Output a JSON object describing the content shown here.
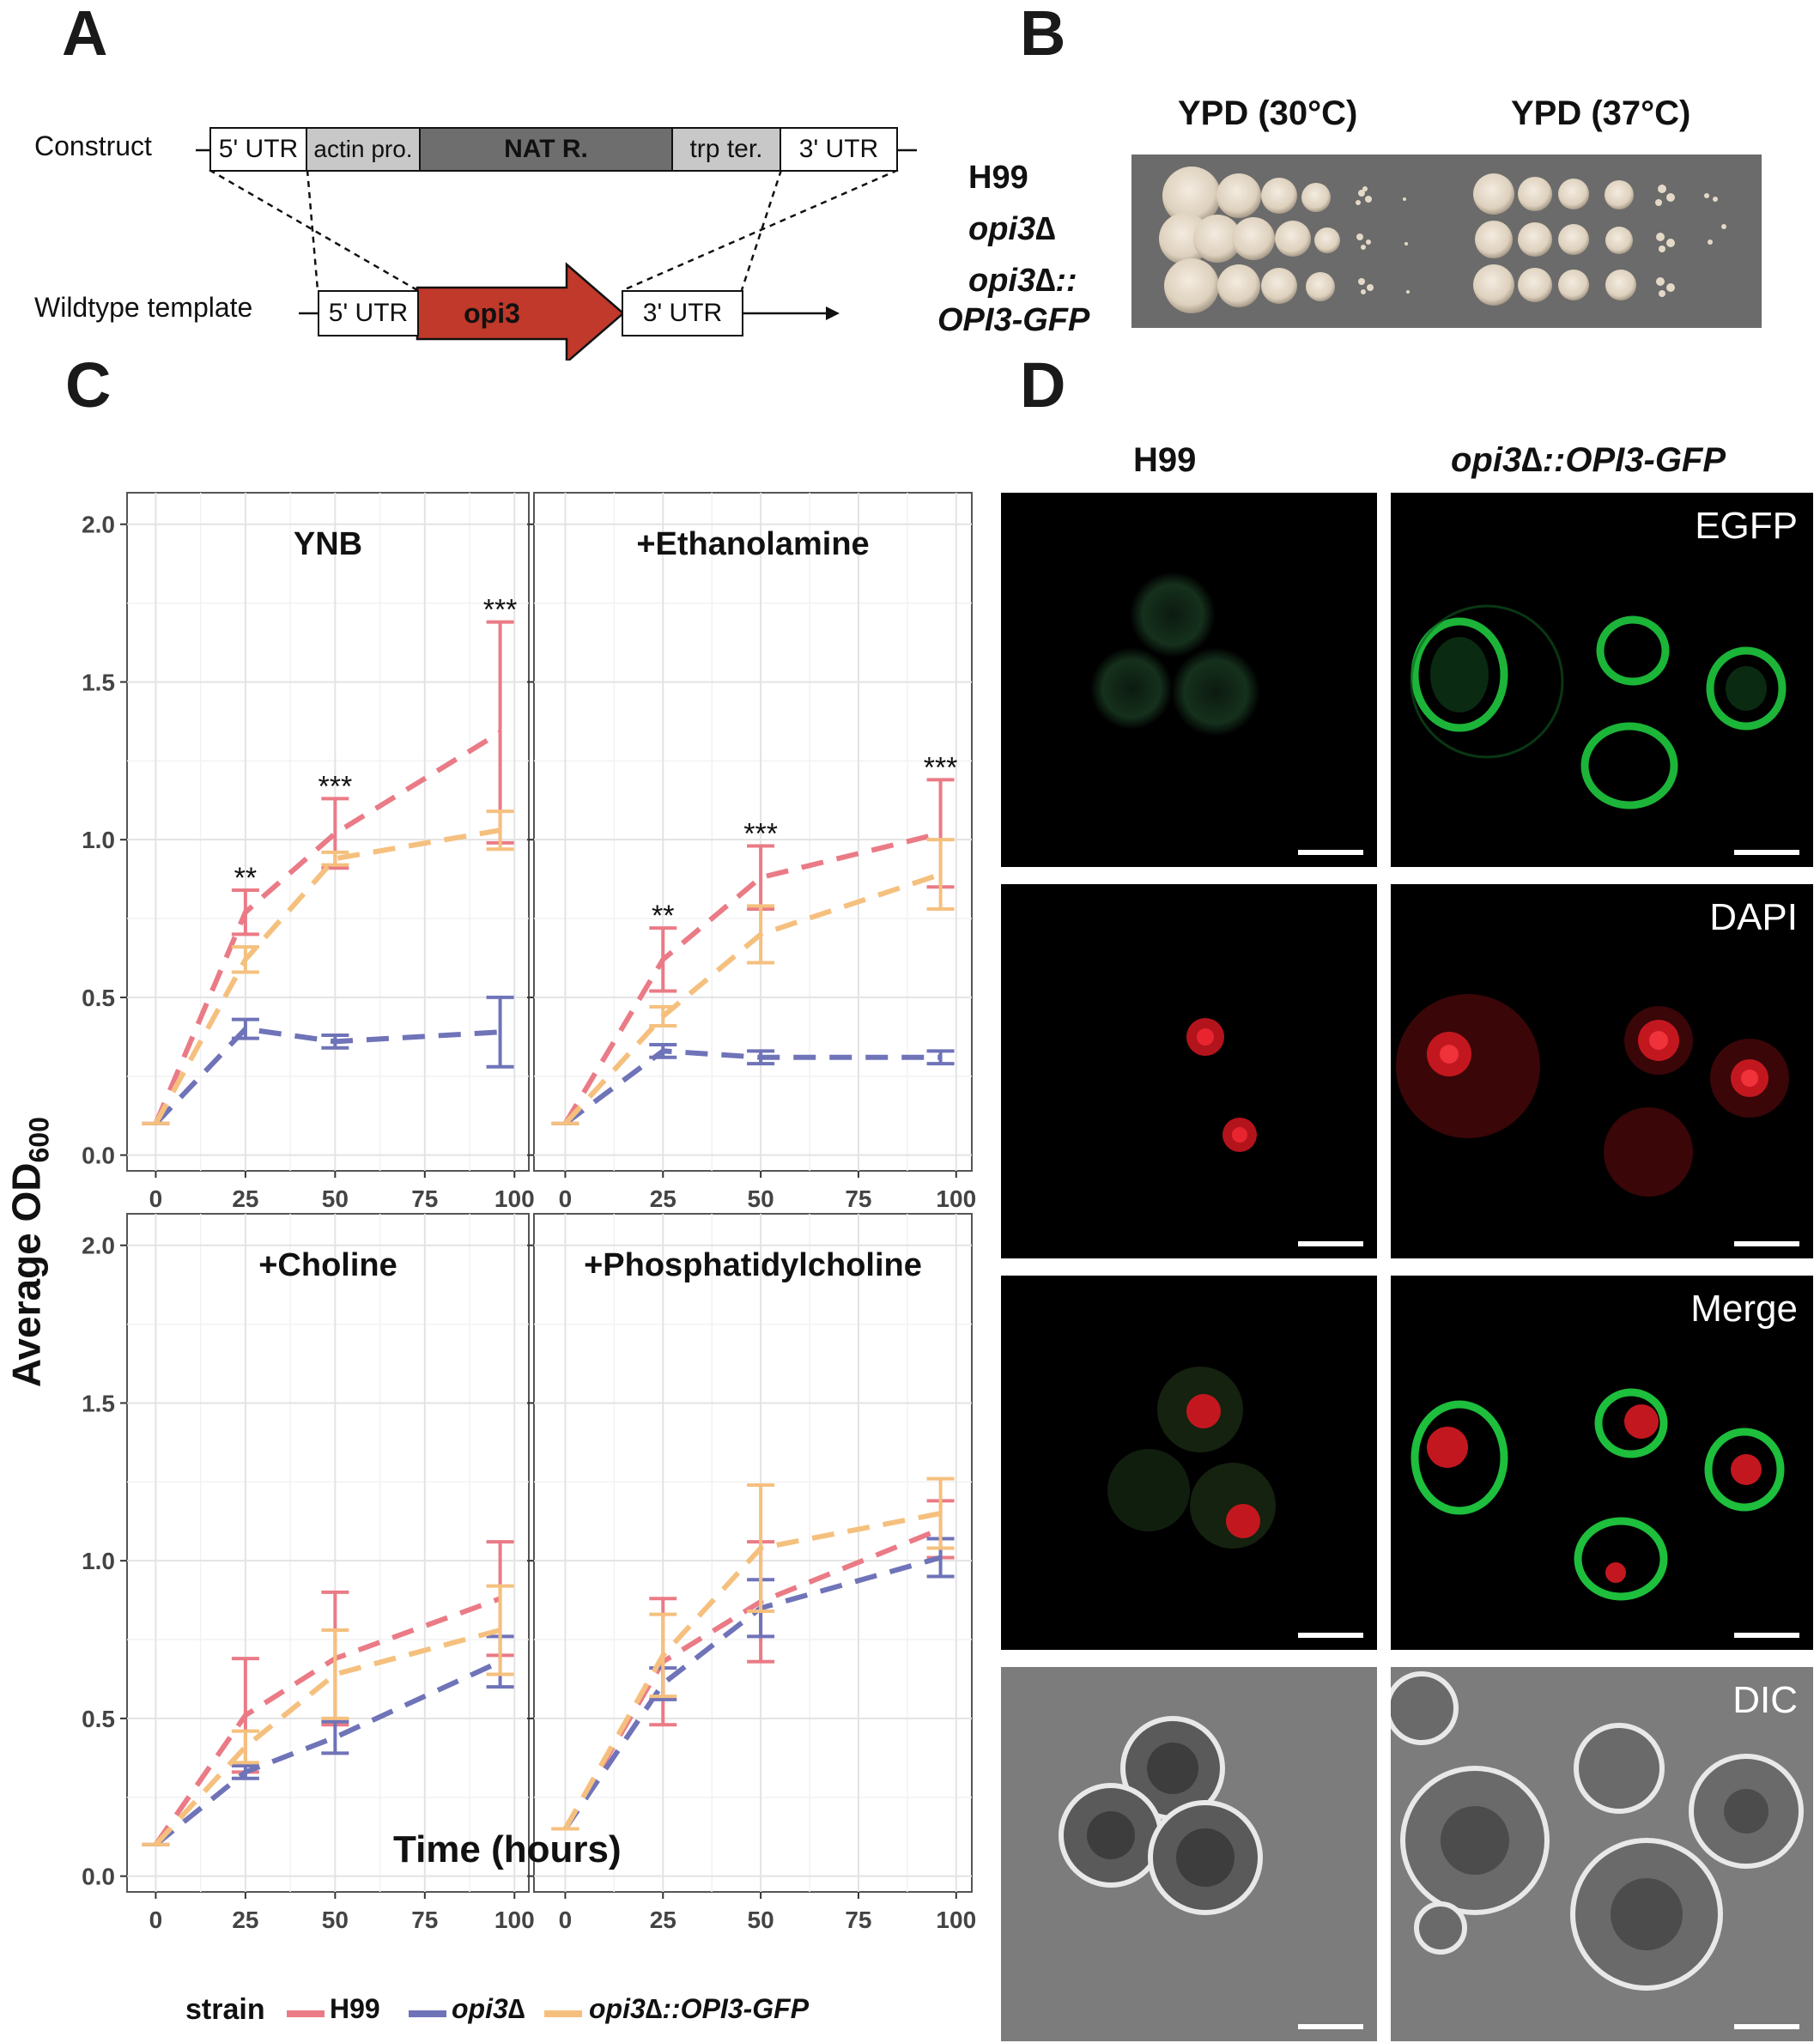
{
  "panels": {
    "A": "A",
    "B": "B",
    "C": "C",
    "D": "D"
  },
  "construct": {
    "row1_label": "Construct",
    "row2_label": "Wildtype template",
    "construct_boxes": [
      "5' UTR",
      "actin pro.",
      "NAT R.",
      "trp ter.",
      "3' UTR"
    ],
    "template_boxes": [
      "5' UTR",
      "opi3",
      "3' UTR"
    ],
    "colors": {
      "actin": "#c8c8c8",
      "natr": "#6e6e6e",
      "trp": "#c8c8c8",
      "opi3": "#c0392b"
    }
  },
  "spot_assay": {
    "col_headers": [
      "YPD (30°C)",
      "YPD (37°C)"
    ],
    "row_labels": [
      {
        "main": "H99",
        "sub": ""
      },
      {
        "main": "opi3∆",
        "sub": ""
      },
      {
        "main": "opi3∆::",
        "sub": "OPI3-GFP"
      }
    ]
  },
  "growth": {
    "ylabel": "Average OD",
    "ylabel_sub": "600",
    "xlabel": "Time (hours)",
    "legend_title": "strain",
    "legend": [
      "H99",
      "opi3∆",
      "opi3∆::OPI3-GFP"
    ],
    "colors": {
      "H99": "#ea7b86",
      "opi3": "#6f73b8",
      "gfp": "#f5c07e"
    }
  },
  "chart_data": [
    {
      "type": "line",
      "title": "YNB",
      "x": [
        0,
        25,
        50,
        96
      ],
      "xlim": [
        -8,
        104
      ],
      "ylim": [
        -0.05,
        2.1
      ],
      "xticks": [
        0,
        25,
        50,
        75,
        100
      ],
      "yticks": [
        0.0,
        0.5,
        1.0,
        1.5,
        2.0
      ],
      "series": [
        {
          "name": "H99",
          "values": [
            0.1,
            0.77,
            1.02,
            1.34
          ],
          "err": [
            0,
            0.07,
            0.11,
            0.35
          ]
        },
        {
          "name": "opi3∆",
          "values": [
            0.1,
            0.4,
            0.36,
            0.39
          ],
          "err": [
            0,
            0.03,
            0.02,
            0.11
          ]
        },
        {
          "name": "opi3∆::OPI3-GFP",
          "values": [
            0.1,
            0.62,
            0.94,
            1.03
          ],
          "err": [
            0,
            0.04,
            0.02,
            0.06
          ]
        }
      ],
      "annotations": [
        {
          "x": 25,
          "y": 0.87,
          "text": "**"
        },
        {
          "x": 50,
          "y": 1.16,
          "text": "***"
        },
        {
          "x": 96,
          "y": 1.72,
          "text": "***"
        }
      ]
    },
    {
      "type": "line",
      "title": "+Ethanolamine",
      "x": [
        0,
        25,
        50,
        96
      ],
      "xlim": [
        -8,
        104
      ],
      "ylim": [
        -0.05,
        2.1
      ],
      "xticks": [
        0,
        25,
        50,
        75,
        100
      ],
      "yticks": [
        0.0,
        0.5,
        1.0,
        1.5,
        2.0
      ],
      "series": [
        {
          "name": "H99",
          "values": [
            0.1,
            0.62,
            0.88,
            1.02
          ],
          "err": [
            0,
            0.1,
            0.1,
            0.17
          ]
        },
        {
          "name": "opi3∆",
          "values": [
            0.1,
            0.33,
            0.31,
            0.31
          ],
          "err": [
            0,
            0.02,
            0.02,
            0.02
          ]
        },
        {
          "name": "opi3∆::OPI3-GFP",
          "values": [
            0.1,
            0.44,
            0.7,
            0.89
          ],
          "err": [
            0,
            0.03,
            0.09,
            0.11
          ]
        }
      ],
      "annotations": [
        {
          "x": 25,
          "y": 0.75,
          "text": "**"
        },
        {
          "x": 50,
          "y": 1.01,
          "text": "***"
        },
        {
          "x": 96,
          "y": 1.22,
          "text": "***"
        }
      ]
    },
    {
      "type": "line",
      "title": "+Choline",
      "x": [
        0,
        25,
        50,
        96
      ],
      "xlim": [
        -8,
        104
      ],
      "ylim": [
        -0.05,
        2.1
      ],
      "xticks": [
        0,
        25,
        50,
        75,
        100
      ],
      "yticks": [
        0.0,
        0.5,
        1.0,
        1.5,
        2.0
      ],
      "series": [
        {
          "name": "H99",
          "values": [
            0.1,
            0.51,
            0.69,
            0.88
          ],
          "err": [
            0,
            0.18,
            0.21,
            0.18
          ]
        },
        {
          "name": "opi3∆",
          "values": [
            0.1,
            0.33,
            0.44,
            0.68
          ],
          "err": [
            0,
            0.02,
            0.05,
            0.08
          ]
        },
        {
          "name": "opi3∆::OPI3-GFP",
          "values": [
            0.1,
            0.41,
            0.64,
            0.78
          ],
          "err": [
            0,
            0.05,
            0.14,
            0.14
          ]
        }
      ],
      "annotations": []
    },
    {
      "type": "line",
      "title": "+Phosphatidylcholine",
      "x": [
        0,
        25,
        50,
        96
      ],
      "xlim": [
        -8,
        104
      ],
      "ylim": [
        -0.05,
        2.1
      ],
      "xticks": [
        0,
        25,
        50,
        75,
        100
      ],
      "yticks": [
        0.0,
        0.5,
        1.0,
        1.5,
        2.0
      ],
      "series": [
        {
          "name": "H99",
          "values": [
            0.15,
            0.68,
            0.87,
            1.1
          ],
          "err": [
            0,
            0.2,
            0.19,
            0.09
          ]
        },
        {
          "name": "opi3∆",
          "values": [
            0.15,
            0.61,
            0.85,
            1.01
          ],
          "err": [
            0,
            0.05,
            0.09,
            0.06
          ]
        },
        {
          "name": "opi3∆::OPI3-GFP",
          "values": [
            0.15,
            0.7,
            1.04,
            1.15
          ],
          "err": [
            0,
            0.13,
            0.2,
            0.11
          ]
        }
      ],
      "annotations": []
    }
  ],
  "microscopy": {
    "col_headers": [
      {
        "main": "H99",
        "rest": ""
      },
      {
        "main": "opi3∆",
        "rest": "::OPI3-GFP"
      }
    ],
    "channels": [
      "EGFP",
      "DAPI",
      "Merge",
      "DIC"
    ]
  }
}
